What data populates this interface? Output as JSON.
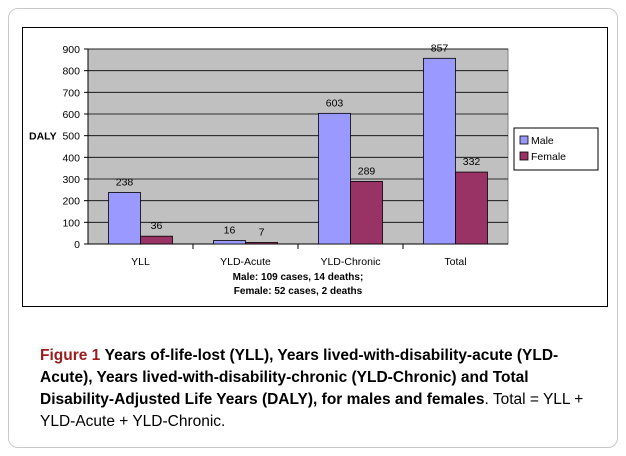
{
  "chart_data": {
    "type": "bar",
    "categories": [
      "YLL",
      "YLD-Acute",
      "YLD-Chronic",
      "Total"
    ],
    "series": [
      {
        "name": "Male",
        "values": [
          238,
          16,
          603,
          857
        ],
        "color": "#9999ff"
      },
      {
        "name": "Female",
        "values": [
          36,
          7,
          289,
          332
        ],
        "color": "#993366"
      }
    ],
    "ylabel": "DALY",
    "ylim": [
      0,
      900
    ],
    "yticks": [
      0,
      100,
      200,
      300,
      400,
      500,
      600,
      700,
      800,
      900
    ],
    "grid": true,
    "plot_background": "#c0c0c0",
    "legend": "right",
    "notes": [
      "Male: 109 cases, 14 deaths;",
      "Female: 52 cases, 2 deaths"
    ]
  },
  "caption": {
    "figure_label": "Figure 1",
    "title": "Years of-life-lost (YLL), Years lived-with-disability-acute (YLD-Acute), Years lived-with-disability-chronic (YLD-Chronic) and Total Disability-Adjusted Life Years (DALY), for males and females",
    "text": ". Total = YLL + YLD-Acute + YLD-Chronic."
  }
}
